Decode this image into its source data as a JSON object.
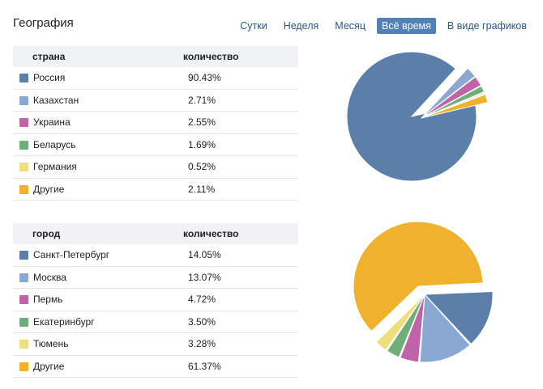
{
  "title": "География",
  "periods": [
    "Сутки",
    "Неделя",
    "Месяц",
    "Всё время",
    "В виде графиков"
  ],
  "active_period": "Всё время",
  "colors": [
    "#5b7fa8",
    "#8aa8d2",
    "#c064a7",
    "#6fae78",
    "#ede07c",
    "#f0b12c"
  ],
  "country_table": {
    "col_name": "страна",
    "col_value": "количество",
    "rows": [
      {
        "name": "Россия",
        "value": "90.43%"
      },
      {
        "name": "Казахстан",
        "value": "2.71%"
      },
      {
        "name": "Украина",
        "value": "2.55%"
      },
      {
        "name": "Беларусь",
        "value": "1.69%"
      },
      {
        "name": "Германия",
        "value": "0.52%"
      },
      {
        "name": "Другие",
        "value": "2.11%"
      }
    ]
  },
  "city_table": {
    "col_name": "город",
    "col_value": "количество",
    "rows": [
      {
        "name": "Санкт-Петербург",
        "value": "14.05%"
      },
      {
        "name": "Москва",
        "value": "13.07%"
      },
      {
        "name": "Пермь",
        "value": "4.72%"
      },
      {
        "name": "Екатеринбург",
        "value": "3.50%"
      },
      {
        "name": "Тюмень",
        "value": "3.28%"
      },
      {
        "name": "Другие",
        "value": "61.37%"
      }
    ]
  },
  "chart_data": [
    {
      "type": "pie",
      "categories": [
        "Россия",
        "Казахстан",
        "Украина",
        "Беларусь",
        "Германия",
        "Другие"
      ],
      "values": [
        90.43,
        2.71,
        2.55,
        1.69,
        0.52,
        2.11
      ],
      "exploded": true
    },
    {
      "type": "pie",
      "categories": [
        "Санкт-Петербург",
        "Москва",
        "Пермь",
        "Екатеринбург",
        "Тюмень",
        "Другие"
      ],
      "values": [
        14.05,
        13.07,
        4.72,
        3.5,
        3.28,
        61.37
      ],
      "exploded": true
    }
  ]
}
